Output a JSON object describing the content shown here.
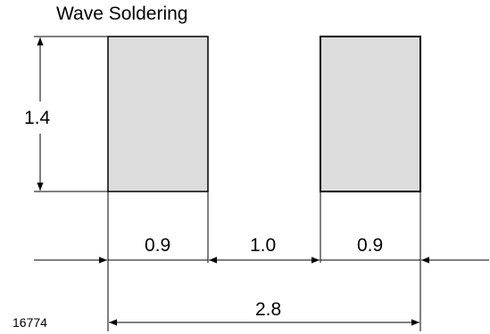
{
  "title": "Wave Soldering",
  "figure_id": "16774",
  "units": "",
  "pads": [
    {
      "name": "left-pad",
      "width": 0.9,
      "height": 1.4
    },
    {
      "name": "right-pad",
      "width": 0.9,
      "height": 1.4
    }
  ],
  "dimensions": {
    "pad_height": "1.4",
    "left_pad_width": "0.9",
    "gap": "1.0",
    "right_pad_width": "0.9",
    "total_width": "2.8"
  },
  "colors": {
    "pad_fill": "#dcdcdc",
    "line": "#000000",
    "background": "#ffffff"
  }
}
